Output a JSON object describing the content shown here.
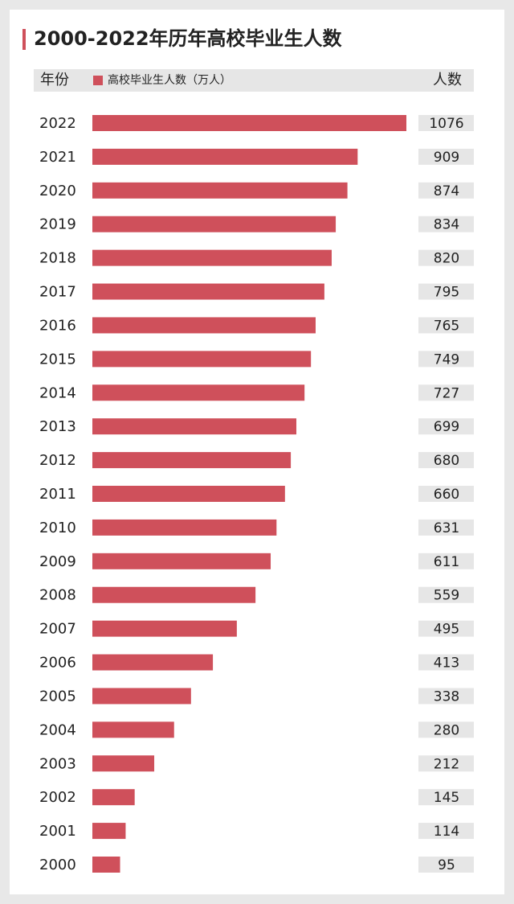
{
  "chart_data": {
    "type": "bar",
    "orientation": "horizontal",
    "title": "2000-2022年历年高校毕业生人数",
    "category_header": "年份",
    "value_header": "人数",
    "categories": [
      "2022",
      "2021",
      "2020",
      "2019",
      "2018",
      "2017",
      "2016",
      "2015",
      "2014",
      "2013",
      "2012",
      "2011",
      "2010",
      "2009",
      "2008",
      "2007",
      "2006",
      "2005",
      "2004",
      "2003",
      "2002",
      "2001",
      "2000"
    ],
    "series": [
      {
        "name": "高校毕业生人数（万人）",
        "color": "#cf505b",
        "values": [
          1076,
          909,
          874,
          834,
          820,
          795,
          765,
          749,
          727,
          699,
          680,
          660,
          631,
          611,
          559,
          495,
          413,
          338,
          280,
          212,
          145,
          114,
          95
        ]
      }
    ]
  }
}
